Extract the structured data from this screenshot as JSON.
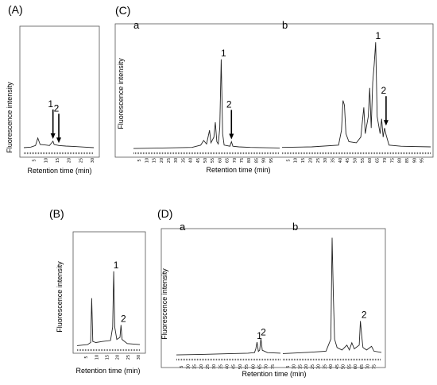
{
  "chart_data": [
    {
      "id": "A",
      "type": "line",
      "panel_label": "(A)",
      "xlabel": "Retention time (min)",
      "ylabel": "Fluorescence intensity",
      "xlim": [
        0,
        30
      ],
      "x_ticks": [
        5,
        10,
        15,
        20,
        25,
        30
      ],
      "peak_labels": [
        {
          "text": "1",
          "x": 12.5,
          "arrow": true
        },
        {
          "text": "2",
          "x": 15.0,
          "arrow": true
        }
      ],
      "series": [
        {
          "points": [
            [
              0,
              0.03
            ],
            [
              3,
              0.035
            ],
            [
              5,
              0.05
            ],
            [
              6,
              0.12
            ],
            [
              7,
              0.06
            ],
            [
              9,
              0.055
            ],
            [
              11,
              0.05
            ],
            [
              12.5,
              0.09
            ],
            [
              13,
              0.06
            ],
            [
              15,
              0.05
            ],
            [
              18,
              0.045
            ],
            [
              22,
              0.04
            ],
            [
              26,
              0.035
            ],
            [
              30,
              0.03
            ]
          ]
        }
      ],
      "ylim": [
        0,
        1
      ]
    },
    {
      "id": "B",
      "type": "line",
      "panel_label": "(B)",
      "xlabel": "Retention time (min)",
      "ylabel": "Fluorescence intensity",
      "xlim": [
        0,
        30
      ],
      "x_ticks": [
        5,
        10,
        15,
        20,
        25,
        30
      ],
      "peak_labels": [
        {
          "text": "1",
          "x": 17.5
        },
        {
          "text": "2",
          "x": 21.0
        }
      ],
      "series": [
        {
          "points": [
            [
              0,
              0.02
            ],
            [
              5,
              0.03
            ],
            [
              6.5,
              0.05
            ],
            [
              7,
              0.48
            ],
            [
              7.5,
              0.06
            ],
            [
              9,
              0.05
            ],
            [
              12,
              0.06
            ],
            [
              16,
              0.07
            ],
            [
              17,
              0.2
            ],
            [
              17.5,
              0.74
            ],
            [
              18,
              0.2
            ],
            [
              19,
              0.08
            ],
            [
              20.5,
              0.1
            ],
            [
              21,
              0.22
            ],
            [
              21.5,
              0.08
            ],
            [
              24,
              0.04
            ],
            [
              30,
              0.03
            ]
          ]
        }
      ],
      "ylim": [
        0,
        1
      ]
    },
    {
      "id": "C-a",
      "type": "line",
      "panel_label": "(C)",
      "sub_label": "a",
      "xlabel": "Retention time (min)",
      "ylabel": "Fluorescence intensity",
      "xlim": [
        0,
        100
      ],
      "x_ticks": [
        5,
        10,
        15,
        20,
        25,
        30,
        35,
        40,
        45,
        50,
        55,
        60,
        65,
        70,
        75,
        80,
        85,
        90,
        95
      ],
      "peak_labels": [
        {
          "text": "1",
          "x": 60
        },
        {
          "text": "2",
          "x": 67,
          "arrow": true
        }
      ],
      "series": [
        {
          "points": [
            [
              0,
              0.02
            ],
            [
              20,
              0.025
            ],
            [
              40,
              0.03
            ],
            [
              46,
              0.05
            ],
            [
              48,
              0.09
            ],
            [
              50,
              0.06
            ],
            [
              52,
              0.18
            ],
            [
              53,
              0.07
            ],
            [
              55,
              0.12
            ],
            [
              56,
              0.25
            ],
            [
              57,
              0.08
            ],
            [
              58,
              0.06
            ],
            [
              59,
              0.2
            ],
            [
              60,
              0.8
            ],
            [
              61,
              0.15
            ],
            [
              62,
              0.05
            ],
            [
              66,
              0.04
            ],
            [
              67,
              0.08
            ],
            [
              68,
              0.04
            ],
            [
              72,
              0.035
            ],
            [
              80,
              0.03
            ],
            [
              100,
              0.025
            ]
          ]
        }
      ],
      "ylim": [
        0,
        1
      ]
    },
    {
      "id": "C-b",
      "type": "line",
      "sub_label": "b",
      "xlim": [
        0,
        100
      ],
      "x_ticks": [
        5,
        10,
        15,
        20,
        25,
        30,
        35,
        40,
        45,
        50,
        55,
        60,
        65,
        70,
        75,
        80,
        85,
        90,
        95
      ],
      "peak_labels": [
        {
          "text": "1",
          "x": 63
        },
        {
          "text": "2",
          "x": 70,
          "arrow": true
        }
      ],
      "series": [
        {
          "points": [
            [
              0,
              0.03
            ],
            [
              20,
              0.035
            ],
            [
              38,
              0.05
            ],
            [
              40,
              0.18
            ],
            [
              41,
              0.44
            ],
            [
              42,
              0.4
            ],
            [
              43,
              0.15
            ],
            [
              45,
              0.08
            ],
            [
              50,
              0.07
            ],
            [
              53,
              0.12
            ],
            [
              55,
              0.38
            ],
            [
              56,
              0.15
            ],
            [
              58,
              0.3
            ],
            [
              59,
              0.55
            ],
            [
              60,
              0.2
            ],
            [
              61,
              0.6
            ],
            [
              62,
              0.75
            ],
            [
              63,
              0.95
            ],
            [
              64,
              0.3
            ],
            [
              66,
              0.15
            ],
            [
              67,
              0.28
            ],
            [
              68,
              0.12
            ],
            [
              69,
              0.2
            ],
            [
              70,
              0.14
            ],
            [
              72,
              0.05
            ],
            [
              80,
              0.04
            ],
            [
              100,
              0.035
            ]
          ]
        }
      ],
      "ylim": [
        0,
        1
      ]
    },
    {
      "id": "D-a",
      "type": "line",
      "panel_label": "(D)",
      "sub_label": "a",
      "xlabel": "Retention time (min)",
      "ylabel": "Fluorescence intensity",
      "xlim": [
        0,
        80
      ],
      "x_ticks": [
        5,
        10,
        15,
        20,
        25,
        30,
        35,
        40,
        45,
        50,
        55,
        60,
        65,
        70,
        75
      ],
      "peak_labels": [
        {
          "text": "1",
          "x": 62
        },
        {
          "text": "2",
          "x": 65
        }
      ],
      "series": [
        {
          "points": [
            [
              0,
              0.02
            ],
            [
              20,
              0.025
            ],
            [
              40,
              0.03
            ],
            [
              55,
              0.035
            ],
            [
              60,
              0.04
            ],
            [
              61,
              0.07
            ],
            [
              62,
              0.13
            ],
            [
              63,
              0.05
            ],
            [
              64,
              0.06
            ],
            [
              65,
              0.16
            ],
            [
              66,
              0.06
            ],
            [
              70,
              0.04
            ],
            [
              80,
              0.035
            ]
          ]
        }
      ],
      "ylim": [
        0,
        1
      ]
    },
    {
      "id": "D-b",
      "type": "line",
      "sub_label": "b",
      "xlim": [
        0,
        80
      ],
      "x_ticks": [
        5,
        10,
        15,
        20,
        25,
        30,
        35,
        40,
        45,
        50,
        55,
        60,
        65,
        70,
        75
      ],
      "peak_labels": [
        {
          "text": "2",
          "x": 64
        }
      ],
      "series": [
        {
          "points": [
            [
              0,
              0.03
            ],
            [
              20,
              0.04
            ],
            [
              35,
              0.05
            ],
            [
              39,
              0.15
            ],
            [
              40,
              0.99
            ],
            [
              41,
              0.5
            ],
            [
              42,
              0.15
            ],
            [
              44,
              0.08
            ],
            [
              48,
              0.06
            ],
            [
              52,
              0.1
            ],
            [
              54,
              0.06
            ],
            [
              56,
              0.12
            ],
            [
              58,
              0.07
            ],
            [
              62,
              0.1
            ],
            [
              63,
              0.3
            ],
            [
              64,
              0.18
            ],
            [
              65,
              0.08
            ],
            [
              68,
              0.06
            ],
            [
              72,
              0.09
            ],
            [
              74,
              0.05
            ],
            [
              80,
              0.04
            ]
          ]
        }
      ],
      "ylim": [
        0,
        1
      ]
    }
  ]
}
